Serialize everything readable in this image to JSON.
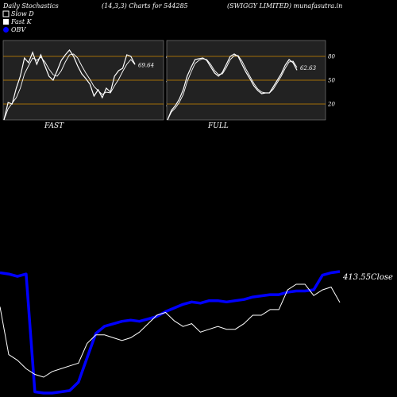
{
  "header": {
    "title": "Daily Stochastics",
    "params": "(14,3,3) Charts for 544285",
    "company": "(SWIGGY LIMITED) munafasutra.in"
  },
  "legend": [
    {
      "label": "Slow  D",
      "swatch": "#ffffff"
    },
    {
      "label": "Fast K",
      "swatch": "#ffffff"
    },
    {
      "label": "OBV",
      "swatch": "#0000ff"
    }
  ],
  "colors": {
    "background": "#000000",
    "panel": "#222222",
    "level_line": "#cc8800",
    "stoch_line": "#ffffff",
    "obv_line": "#0000ff",
    "close_line": "#ffffff"
  },
  "chart_data": [
    {
      "type": "line",
      "panel": "FAST",
      "ylim": [
        0,
        100
      ],
      "levels": [
        80,
        50,
        20
      ],
      "level_labels": [
        "80",
        "50",
        "20"
      ],
      "last_value_label": "69.64",
      "series": [
        {
          "values": [
            0,
            22,
            20,
            40,
            55,
            78,
            72,
            85,
            70,
            82,
            68,
            55,
            50,
            62,
            75,
            82,
            88,
            80,
            68,
            58,
            52,
            45,
            30,
            38,
            28,
            40,
            35,
            55,
            62,
            65,
            82,
            80,
            70
          ]
        },
        {
          "values": [
            0,
            14,
            21,
            28,
            40,
            58,
            68,
            78,
            75,
            79,
            73,
            64,
            57,
            55,
            62,
            73,
            82,
            83,
            78,
            68,
            59,
            51,
            42,
            37,
            32,
            35,
            34,
            43,
            51,
            61,
            70,
            76,
            69.64
          ]
        }
      ]
    },
    {
      "type": "line",
      "panel": "FULL",
      "ylim": [
        0,
        100
      ],
      "levels": [
        80,
        50,
        20
      ],
      "level_labels": [
        "80",
        "50",
        "20"
      ],
      "last_value_label": "62.63",
      "series": [
        {
          "values": [
            0,
            12,
            18,
            26,
            38,
            55,
            66,
            76,
            77,
            78,
            75,
            67,
            59,
            55,
            60,
            70,
            80,
            83,
            80,
            70,
            60,
            52,
            43,
            37,
            33,
            34,
            34,
            42,
            50,
            58,
            69,
            76,
            72,
            62.63
          ]
        },
        {
          "values": [
            0,
            10,
            15,
            22,
            32,
            48,
            60,
            71,
            75,
            77,
            76,
            70,
            62,
            57,
            58,
            66,
            76,
            81,
            81,
            74,
            64,
            55,
            46,
            39,
            35,
            34,
            34,
            39,
            47,
            55,
            65,
            73,
            74,
            66
          ]
        }
      ]
    },
    {
      "type": "line",
      "panel": "OBV / Close",
      "close_label": "413.55Close",
      "series": [
        {
          "name": "OBV",
          "values": [
            100,
            99,
            97,
            99,
            2,
            1,
            1,
            2,
            3,
            10,
            30,
            50,
            56,
            58,
            60,
            61,
            60,
            62,
            64,
            68,
            71,
            74,
            76,
            75,
            77,
            77,
            76,
            77,
            78,
            80,
            81,
            82,
            82,
            84,
            85,
            85,
            86,
            98,
            100,
            101
          ]
        },
        {
          "name": "Close",
          "values": [
            412,
            395,
            393,
            390,
            388,
            387,
            389,
            390,
            391,
            392,
            399,
            402,
            402,
            401,
            400,
            401,
            403,
            406,
            409,
            410,
            407,
            405,
            406,
            403,
            404,
            405,
            404,
            404,
            406,
            409,
            409,
            411,
            411,
            418,
            420,
            420,
            416,
            418,
            419,
            413.55
          ]
        }
      ]
    }
  ],
  "panel_labels": {
    "fast": "FAST",
    "full": "FULL"
  }
}
